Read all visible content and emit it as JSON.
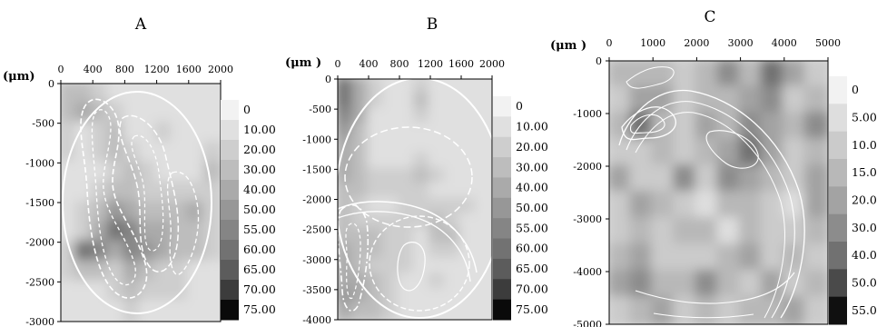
{
  "chart_data": [
    {
      "type": "heatmap",
      "panel_label": "A",
      "unit_label": "(μm)",
      "xlim": [
        0,
        2000
      ],
      "ylim": [
        -3000,
        0
      ],
      "x_ticks": [
        "0",
        "400",
        "800",
        "1200",
        "1600",
        "2000"
      ],
      "y_ticks": [
        "0",
        "-500",
        "-1000",
        "-1500",
        "-2000",
        "-2500",
        "-3000"
      ],
      "colorbar": {
        "labels": [
          "0",
          "10.00",
          "20.00",
          "30.00",
          "40.00",
          "50.00",
          "55.00",
          "60.00",
          "65.00",
          "70.00",
          "75.00"
        ],
        "colors": [
          "#f2f2f2",
          "#e0e0e0",
          "#cecece",
          "#bdbdbd",
          "#aaaaaa",
          "#979797",
          "#858585",
          "#727272",
          "#5c5c5c",
          "#3c3c3c",
          "#0a0a0a"
        ]
      },
      "x": [
        100,
        300,
        500,
        700,
        900,
        1100,
        1300,
        1500,
        1700,
        1900
      ],
      "y": [
        -125,
        -375,
        -625,
        -875,
        -1125,
        -1375,
        -1625,
        -1875,
        -2125,
        -2375,
        -2625,
        -2875
      ],
      "z": [
        [
          30,
          35,
          25,
          15,
          10,
          10,
          10,
          10,
          10,
          10
        ],
        [
          30,
          40,
          30,
          20,
          10,
          10,
          15,
          10,
          10,
          10
        ],
        [
          20,
          10,
          25,
          30,
          15,
          10,
          20,
          10,
          10,
          10
        ],
        [
          20,
          10,
          20,
          30,
          25,
          10,
          15,
          10,
          10,
          20
        ],
        [
          10,
          10,
          15,
          25,
          30,
          20,
          10,
          10,
          10,
          30
        ],
        [
          10,
          10,
          20,
          30,
          35,
          25,
          20,
          20,
          25,
          25
        ],
        [
          10,
          20,
          30,
          50,
          40,
          30,
          35,
          30,
          40,
          20
        ],
        [
          10,
          25,
          45,
          60,
          55,
          45,
          40,
          30,
          35,
          20
        ],
        [
          25,
          60,
          55,
          45,
          55,
          50,
          40,
          35,
          30,
          20
        ],
        [
          20,
          35,
          30,
          25,
          40,
          35,
          25,
          20,
          10,
          10
        ],
        [
          10,
          10,
          15,
          20,
          30,
          20,
          25,
          20,
          10,
          10
        ],
        [
          10,
          10,
          10,
          15,
          20,
          15,
          10,
          10,
          10,
          10
        ]
      ]
    },
    {
      "type": "heatmap",
      "panel_label": "B",
      "unit_label": "(μm )",
      "xlim": [
        0,
        2000
      ],
      "ylim": [
        -4000,
        0
      ],
      "x_ticks": [
        "0",
        "400",
        "800",
        "1200",
        "1600",
        "2000"
      ],
      "y_ticks": [
        "0",
        "-500",
        "-1000",
        "-1500",
        "-2000",
        "-2500",
        "-3000",
        "-3500",
        "-4000"
      ],
      "colorbar": {
        "labels": [
          "0",
          "10.00",
          "20.00",
          "30.00",
          "40.00",
          "50.00",
          "55.00",
          "60.00",
          "65.00",
          "70.00",
          "75.00"
        ],
        "colors": [
          "#f2f2f2",
          "#e0e0e0",
          "#cecece",
          "#bdbdbd",
          "#aaaaaa",
          "#979797",
          "#858585",
          "#727272",
          "#5c5c5c",
          "#3c3c3c",
          "#0a0a0a"
        ]
      },
      "x": [
        100,
        300,
        500,
        700,
        900,
        1100,
        1300,
        1500,
        1700,
        1900
      ],
      "y": [
        -125,
        -375,
        -625,
        -875,
        -1125,
        -1375,
        -1625,
        -1875,
        -2125,
        -2375,
        -2625,
        -2875,
        -3125,
        -3375,
        -3625,
        -3875
      ],
      "z": [
        [
          60,
          40,
          20,
          10,
          15,
          25,
          10,
          10,
          10,
          10
        ],
        [
          60,
          45,
          20,
          10,
          15,
          30,
          10,
          10,
          10,
          10
        ],
        [
          55,
          40,
          15,
          10,
          10,
          20,
          10,
          10,
          10,
          10
        ],
        [
          50,
          35,
          10,
          10,
          10,
          10,
          10,
          10,
          10,
          10
        ],
        [
          45,
          30,
          10,
          10,
          10,
          10,
          10,
          10,
          10,
          10
        ],
        [
          40,
          30,
          10,
          10,
          15,
          20,
          10,
          10,
          10,
          10
        ],
        [
          40,
          30,
          20,
          20,
          25,
          30,
          20,
          15,
          10,
          10
        ],
        [
          35,
          30,
          20,
          20,
          20,
          20,
          15,
          10,
          10,
          10
        ],
        [
          30,
          25,
          15,
          15,
          20,
          25,
          20,
          25,
          20,
          10
        ],
        [
          30,
          20,
          20,
          20,
          20,
          20,
          30,
          25,
          10,
          10
        ],
        [
          35,
          30,
          30,
          25,
          20,
          15,
          30,
          30,
          10,
          10
        ],
        [
          40,
          30,
          30,
          25,
          20,
          15,
          20,
          25,
          10,
          10
        ],
        [
          40,
          35,
          25,
          20,
          20,
          15,
          10,
          10,
          10,
          10
        ],
        [
          45,
          40,
          30,
          20,
          10,
          15,
          20,
          10,
          10,
          10
        ],
        [
          50,
          45,
          35,
          20,
          10,
          10,
          10,
          10,
          10,
          10
        ],
        [
          40,
          35,
          30,
          20,
          10,
          10,
          10,
          10,
          10,
          10
        ]
      ]
    },
    {
      "type": "heatmap",
      "panel_label": "C",
      "unit_label": "(μm )",
      "xlim": [
        0,
        5000
      ],
      "ylim": [
        -5000,
        0
      ],
      "x_ticks": [
        "0",
        "1000",
        "2000",
        "3000",
        "4000",
        "5000"
      ],
      "y_ticks": [
        "0",
        "-1000",
        "-2000",
        "-3000",
        "-4000",
        "-5000"
      ],
      "colorbar": {
        "labels": [
          "0",
          "5.000",
          "10.00",
          "15.00",
          "20.00",
          "30.00",
          "40.00",
          "50.00",
          "55.00"
        ],
        "colors": [
          "#f2f2f2",
          "#dedede",
          "#cbcbcb",
          "#b8b8b8",
          "#a3a3a3",
          "#8c8c8c",
          "#717171",
          "#4a4a4a",
          "#101010"
        ]
      },
      "x": [
        250,
        750,
        1250,
        1750,
        2250,
        2750,
        3250,
        3750,
        4250,
        4750
      ],
      "y": [
        -250,
        -750,
        -1250,
        -1750,
        -2250,
        -2750,
        -3250,
        -3750,
        -4250,
        -4750
      ],
      "z": [
        [
          15,
          15,
          15,
          10,
          15,
          30,
          15,
          40,
          20,
          10
        ],
        [
          10,
          20,
          20,
          10,
          15,
          15,
          20,
          30,
          10,
          15
        ],
        [
          15,
          40,
          15,
          10,
          20,
          15,
          30,
          20,
          15,
          30
        ],
        [
          10,
          10,
          15,
          10,
          15,
          20,
          40,
          20,
          10,
          15
        ],
        [
          20,
          10,
          10,
          30,
          10,
          30,
          20,
          15,
          10,
          20
        ],
        [
          10,
          20,
          15,
          10,
          5,
          15,
          15,
          10,
          5,
          20
        ],
        [
          10,
          15,
          10,
          15,
          15,
          5,
          15,
          10,
          10,
          15
        ],
        [
          15,
          25,
          10,
          10,
          10,
          15,
          20,
          10,
          15,
          10
        ],
        [
          20,
          35,
          15,
          15,
          30,
          15,
          10,
          20,
          10,
          15
        ],
        [
          10,
          15,
          20,
          10,
          15,
          10,
          15,
          15,
          20,
          10
        ]
      ]
    }
  ]
}
